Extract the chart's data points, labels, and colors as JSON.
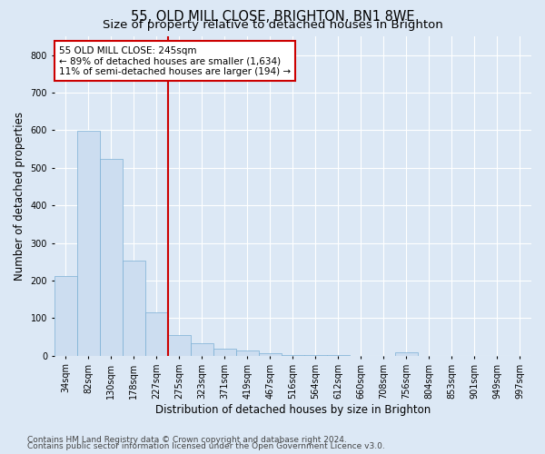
{
  "title": "55, OLD MILL CLOSE, BRIGHTON, BN1 8WE",
  "subtitle": "Size of property relative to detached houses in Brighton",
  "xlabel": "Distribution of detached houses by size in Brighton",
  "ylabel": "Number of detached properties",
  "categories": [
    "34sqm",
    "82sqm",
    "130sqm",
    "178sqm",
    "227sqm",
    "275sqm",
    "323sqm",
    "371sqm",
    "419sqm",
    "467sqm",
    "516sqm",
    "564sqm",
    "612sqm",
    "660sqm",
    "708sqm",
    "756sqm",
    "804sqm",
    "853sqm",
    "901sqm",
    "949sqm",
    "997sqm"
  ],
  "values": [
    213,
    598,
    524,
    253,
    116,
    55,
    33,
    19,
    13,
    6,
    2,
    2,
    2,
    0,
    0,
    9,
    0,
    0,
    0,
    0,
    0
  ],
  "bar_color": "#ccddf0",
  "bar_edge_color": "#7aafd4",
  "vline_x": 4.5,
  "annotation_text": "55 OLD MILL CLOSE: 245sqm\n← 89% of detached houses are smaller (1,634)\n11% of semi-detached houses are larger (194) →",
  "annotation_box_color": "#ffffff",
  "annotation_box_edge": "#cc0000",
  "vline_color": "#cc0000",
  "ylim": [
    0,
    850
  ],
  "yticks": [
    0,
    100,
    200,
    300,
    400,
    500,
    600,
    700,
    800
  ],
  "footer_line1": "Contains HM Land Registry data © Crown copyright and database right 2024.",
  "footer_line2": "Contains public sector information licensed under the Open Government Licence v3.0.",
  "bg_color": "#dce8f5",
  "plot_bg_color": "#dce8f5",
  "grid_color": "#ffffff",
  "title_fontsize": 10.5,
  "subtitle_fontsize": 9.5,
  "axis_label_fontsize": 8.5,
  "tick_fontsize": 7,
  "footer_fontsize": 6.5,
  "annotation_fontsize": 7.5
}
